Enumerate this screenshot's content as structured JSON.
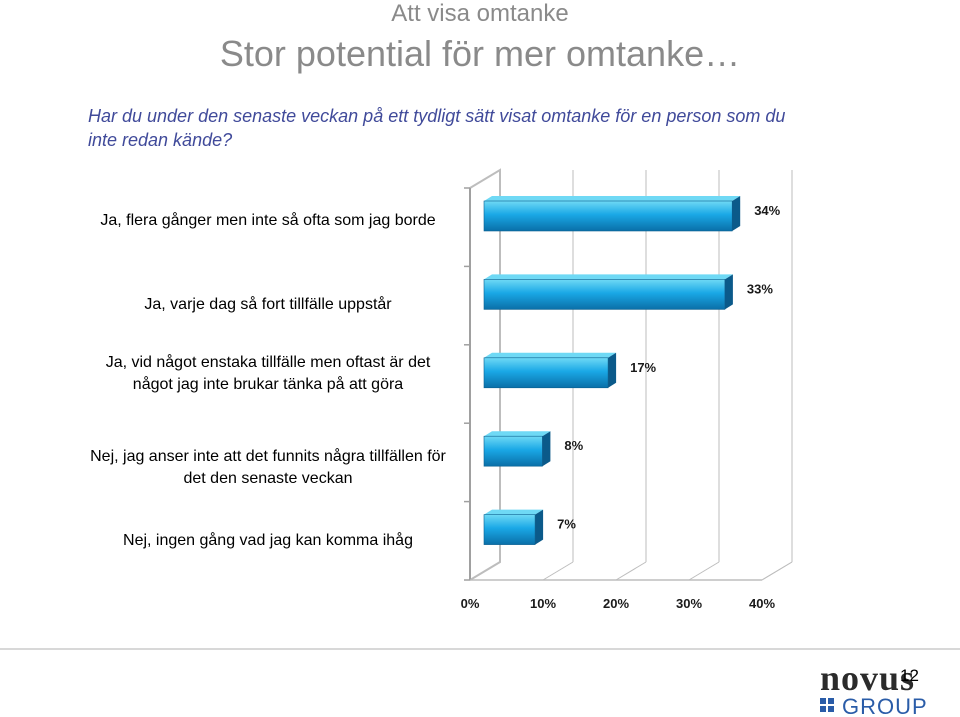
{
  "slide": {
    "subtitle": "Att visa omtanke",
    "title": "Stor potential för mer omtanke…",
    "question": "Har du under den senaste veckan på ett tydligt sätt visat omtanke för en person som du inte redan kände?",
    "page_number": "12"
  },
  "logo": {
    "text_top": "novus",
    "text_bottom": "GROUP",
    "icon": "novus-logo"
  },
  "colors": {
    "bar_top": "#6fd9f5",
    "bar_mid": "#1aa8e6",
    "bar_dark": "#0a6fa8",
    "bar_side": "#0b5a8a",
    "grid": "#bdbdbd",
    "question": "#404a9a",
    "title": "#8a8a8a"
  },
  "chart_data": {
    "type": "bar",
    "orientation": "horizontal",
    "categories": [
      "Ja, flera gånger men inte så ofta som jag borde",
      "Ja, varje dag så fort tillfälle uppstår",
      "Ja, vid något enstaka tillfälle men oftast är det något jag inte brukar tänka på att göra",
      "Nej, jag anser inte att det funnits några tillfällen för det den senaste veckan",
      "Nej, ingen gång vad jag kan komma ihåg"
    ],
    "values": [
      34,
      33,
      17,
      8,
      7
    ],
    "data_labels": [
      "34%",
      "33%",
      "17%",
      "8%",
      "7%"
    ],
    "x_ticks": [
      "0%",
      "10%",
      "20%",
      "30%",
      "40%"
    ],
    "xlim": [
      0,
      40
    ],
    "grid": true
  }
}
